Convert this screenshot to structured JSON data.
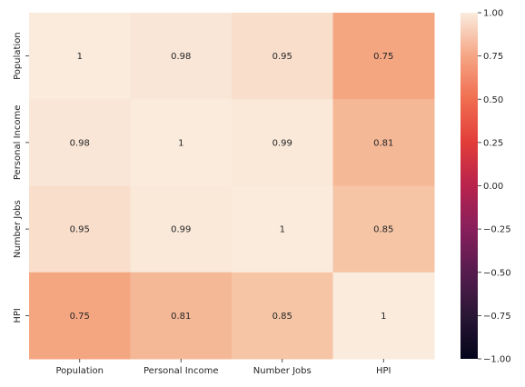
{
  "chart_data": {
    "type": "heatmap",
    "title": "",
    "xlabel": "",
    "ylabel": "",
    "x_categories": [
      "Population",
      "Personal Income",
      "Number Jobs",
      "HPI"
    ],
    "y_categories": [
      "Population",
      "Personal Income",
      "Number Jobs",
      "HPI"
    ],
    "values": [
      [
        1,
        0.98,
        0.95,
        0.75
      ],
      [
        0.98,
        1,
        0.99,
        0.81
      ],
      [
        0.95,
        0.99,
        1,
        0.85
      ],
      [
        0.75,
        0.81,
        0.85,
        1
      ]
    ],
    "value_labels": [
      [
        "1",
        "0.98",
        "0.95",
        "0.75"
      ],
      [
        "0.98",
        "1",
        "0.99",
        "0.81"
      ],
      [
        "0.95",
        "0.99",
        "1",
        "0.85"
      ],
      [
        "0.75",
        "0.81",
        "0.85",
        "1"
      ]
    ],
    "vmin": -1,
    "vmax": 1,
    "colormap": "rocket",
    "colorbar": {
      "ticks": [
        1.0,
        0.75,
        0.5,
        0.25,
        0.0,
        -0.25,
        -0.5,
        -0.75,
        -1.0
      ],
      "tick_labels": [
        "1.00",
        "0.75",
        "0.50",
        "0.25",
        "0.00",
        "−0.25",
        "−0.50",
        "−0.75",
        "−1.00"
      ]
    }
  }
}
